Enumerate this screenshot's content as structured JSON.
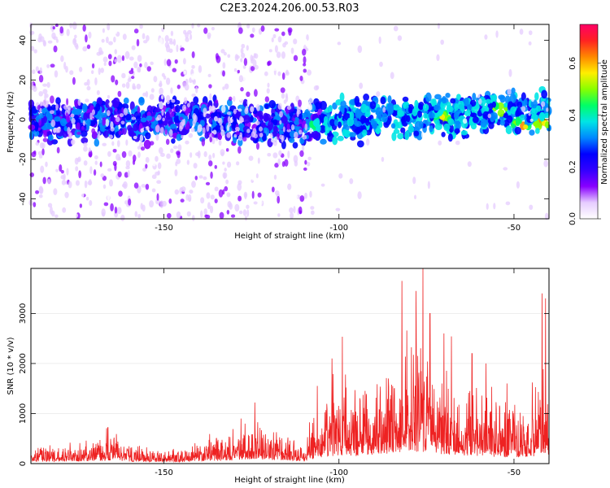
{
  "title": "C2E3.2024.206.00.53.R03",
  "colors": {
    "snr_line": "#ee2222",
    "colormap": [
      "#ffffff",
      "#e6ccff",
      "#8800ff",
      "#3300ff",
      "#0000ff",
      "#0088ff",
      "#00e5e5",
      "#00ff66",
      "#88ff00",
      "#ffee00",
      "#ff8800",
      "#ff2222",
      "#ff0066"
    ]
  },
  "chart_data": [
    {
      "type": "heatmap",
      "xlabel": "Height of straight line (km)",
      "ylabel": "Frequency (Hz)",
      "xlim": [
        -188,
        -40
      ],
      "ylim": [
        -50,
        48
      ],
      "xticks": [
        -150,
        -100,
        -50
      ],
      "yticks": [
        -40,
        -20,
        0,
        20,
        40
      ],
      "description_values": {
        "band_center_hz": [
          [
            -188,
            0
          ],
          [
            -150,
            0
          ],
          [
            -110,
            -2
          ],
          [
            -90,
            1
          ],
          [
            -70,
            2
          ],
          [
            -55,
            4
          ],
          [
            -40,
            3
          ]
        ],
        "band_halfwidth_hz": 6,
        "peak_regions": [
          {
            "x": -54,
            "y": 5,
            "amplitude": 0.7
          },
          {
            "x": -70,
            "y": 1,
            "amplitude": 0.65
          },
          {
            "x": -48,
            "y": -3,
            "amplitude": 0.7
          },
          {
            "x": -42,
            "y": -2,
            "amplitude": 0.7
          },
          {
            "x": -107,
            "y": -3,
            "amplitude": 0.5
          }
        ],
        "noise_region_x": [
          -188,
          -108
        ]
      },
      "colorbar": {
        "label": "Normalized spectral amplitude",
        "range": [
          0,
          0.75
        ],
        "ticks": [
          0.0,
          0.2,
          0.4,
          0.6
        ]
      }
    },
    {
      "type": "line",
      "xlabel": "Height of straight line (km)",
      "ylabel": "SNR (10 * v/v)",
      "xlim": [
        -188,
        -40
      ],
      "ylim": [
        0,
        3900
      ],
      "xticks": [
        -150,
        -100,
        -50
      ],
      "yticks": [
        0,
        1000,
        2000,
        3000
      ],
      "envelope": [
        [
          -188,
          250
        ],
        [
          -170,
          300
        ],
        [
          -165,
          400
        ],
        [
          -160,
          250
        ],
        [
          -145,
          180
        ],
        [
          -140,
          300
        ],
        [
          -130,
          400
        ],
        [
          -125,
          600
        ],
        [
          -118,
          450
        ],
        [
          -110,
          350
        ],
        [
          -105,
          800
        ],
        [
          -100,
          1100
        ],
        [
          -95,
          1000
        ],
        [
          -90,
          1200
        ],
        [
          -85,
          1300
        ],
        [
          -80,
          1700
        ],
        [
          -77,
          1500
        ],
        [
          -72,
          1300
        ],
        [
          -65,
          1100
        ],
        [
          -60,
          1000
        ],
        [
          -55,
          900
        ],
        [
          -50,
          800
        ],
        [
          -45,
          850
        ],
        [
          -42,
          1400
        ],
        [
          -40,
          1200
        ]
      ],
      "peaks": [
        [
          -166,
          720
        ],
        [
          -128,
          900
        ],
        [
          -124,
          1220
        ],
        [
          -102,
          2100
        ],
        [
          -82,
          3650
        ],
        [
          -78,
          3450
        ],
        [
          -76,
          3900
        ],
        [
          -74,
          3000
        ],
        [
          -70,
          2600
        ],
        [
          -62,
          2200
        ],
        [
          -58,
          2000
        ],
        [
          -52,
          1600
        ],
        [
          -42,
          3400
        ],
        [
          -41,
          3300
        ]
      ]
    }
  ]
}
